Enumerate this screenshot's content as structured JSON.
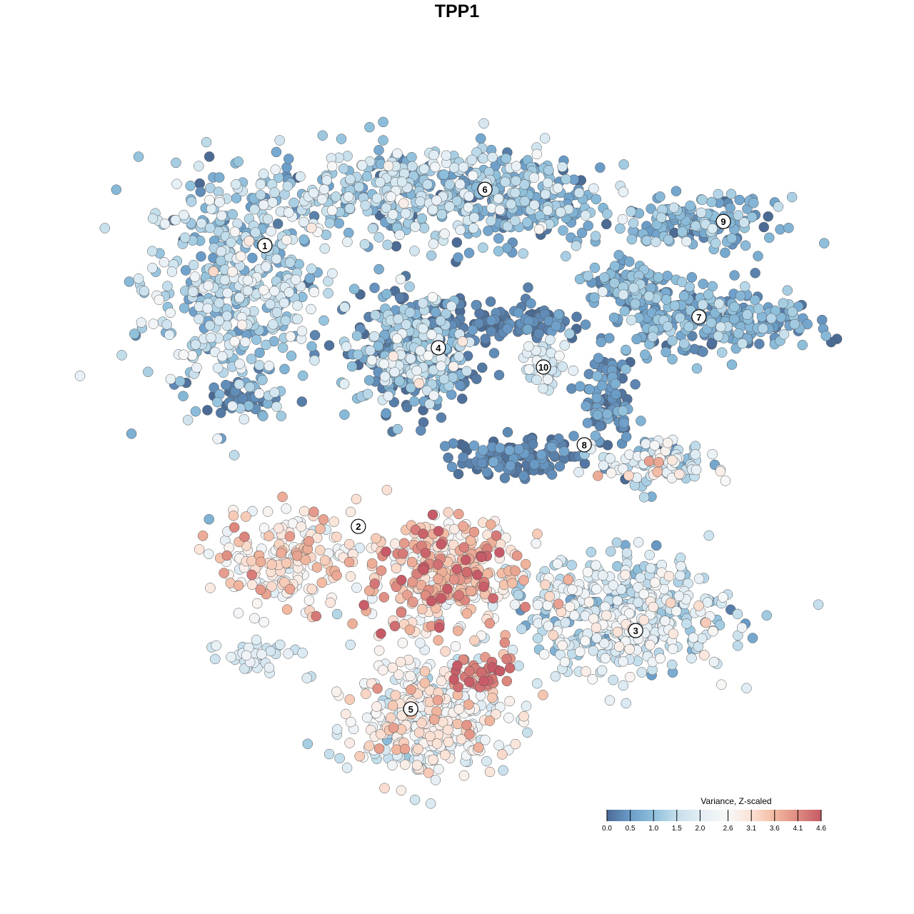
{
  "chart_data": {
    "type": "scatter",
    "title": "TPP1",
    "xlabel": "",
    "ylabel": "",
    "xlim": [
      -10,
      11
    ],
    "ylim": [
      -10,
      10
    ],
    "grid": false,
    "legend": {
      "title": "Variance, Z-scaled",
      "placement": "bottom-right",
      "ticks": [
        "0.0",
        "0.5",
        "1.0",
        "1.5",
        "2.0",
        "2.6",
        "3.1",
        "3.6",
        "4.1",
        "4.6"
      ],
      "tick_values": [
        0.0,
        0.5,
        1.0,
        1.5,
        2.0,
        2.6,
        3.1,
        3.6,
        4.1,
        4.6
      ],
      "colors": [
        "#4b6b95",
        "#6b9dc9",
        "#8ebfdb",
        "#c5dfec",
        "#e3eef5",
        "#f7f7f7",
        "#fbe2d6",
        "#f2b9a0",
        "#de8a80",
        "#c65a66"
      ]
    },
    "clusters": [
      {
        "label": "1",
        "center": [
          -5.98,
          6.58
        ]
      },
      {
        "label": "2",
        "center": [
          -3.07,
          -2.16
        ]
      },
      {
        "label": "3",
        "center": [
          5.56,
          -5.4
        ]
      },
      {
        "label": "4",
        "center": [
          -0.58,
          3.4
        ]
      },
      {
        "label": "5",
        "center": [
          -1.44,
          -7.84
        ]
      },
      {
        "label": "6",
        "center": [
          0.87,
          8.33
        ]
      },
      {
        "label": "7",
        "center": [
          7.53,
          4.36
        ]
      },
      {
        "label": "8",
        "center": [
          3.96,
          0.38
        ]
      },
      {
        "label": "9",
        "center": [
          8.29,
          7.33
        ]
      },
      {
        "label": "10",
        "center": [
          2.69,
          2.8
        ]
      }
    ],
    "point_groups": [
      {
        "cluster": "1",
        "center": [
          -6.9,
          5.3
        ],
        "sd": [
          1.9,
          2.4
        ],
        "n": 480,
        "mean_value": 1.3,
        "sd_value": 0.6
      },
      {
        "cluster": "1",
        "center": [
          -6.7,
          1.8
        ],
        "sd": [
          0.6,
          0.3
        ],
        "n": 40,
        "mean_value": 0.1,
        "sd_value": 0.15
      },
      {
        "cluster": "6",
        "center": [
          -1.3,
          8.2
        ],
        "sd": [
          3.3,
          1.0
        ],
        "n": 430,
        "mean_value": 1.2,
        "sd_value": 0.6
      },
      {
        "cluster": "6",
        "center": [
          2.2,
          7.8
        ],
        "sd": [
          1.5,
          0.8
        ],
        "n": 150,
        "mean_value": 0.6,
        "sd_value": 0.4
      },
      {
        "cluster": "4",
        "center": [
          -1.3,
          3.3
        ],
        "sd": [
          1.2,
          1.2
        ],
        "n": 280,
        "mean_value": 1.1,
        "sd_value": 0.7
      },
      {
        "cluster": "4",
        "center": [
          -1.3,
          3.1
        ],
        "sd": [
          1.4,
          1.2
        ],
        "n": 110,
        "mean_value": 0.2,
        "sd_value": 0.2
      },
      {
        "cluster": "4",
        "center": [
          1.8,
          4.2
        ],
        "sd": [
          1.5,
          0.4
        ],
        "n": 90,
        "mean_value": 0.2,
        "sd_value": 0.2
      },
      {
        "cluster": "10",
        "center": [
          2.8,
          2.9
        ],
        "sd": [
          0.5,
          0.5
        ],
        "n": 40,
        "mean_value": 1.8,
        "sd_value": 0.3
      },
      {
        "cluster": "7",
        "center": [
          8.0,
          4.3
        ],
        "sd": [
          2.1,
          0.7
        ],
        "n": 250,
        "mean_value": 0.7,
        "sd_value": 0.4
      },
      {
        "cluster": "7",
        "center": [
          5.3,
          5.3
        ],
        "sd": [
          1.0,
          0.5
        ],
        "n": 80,
        "mean_value": 0.8,
        "sd_value": 0.4
      },
      {
        "cluster": "9",
        "center": [
          7.6,
          7.3
        ],
        "sd": [
          1.6,
          0.5
        ],
        "n": 150,
        "mean_value": 0.8,
        "sd_value": 0.4
      },
      {
        "cluster": "8",
        "center": [
          4.7,
          1.8
        ],
        "sd": [
          0.5,
          1.2
        ],
        "n": 100,
        "mean_value": 0.3,
        "sd_value": 0.3
      },
      {
        "cluster": "8",
        "center": [
          6.2,
          -0.2
        ],
        "sd": [
          1.2,
          0.5
        ],
        "n": 120,
        "mean_value": 1.7,
        "sd_value": 0.8
      },
      {
        "cluster": "8",
        "center": [
          1.8,
          0.0
        ],
        "sd": [
          1.2,
          0.4
        ],
        "n": 120,
        "mean_value": 0.2,
        "sd_value": 0.2
      },
      {
        "cluster": "2",
        "center": [
          -5.3,
          -3.1
        ],
        "sd": [
          1.5,
          1.0
        ],
        "n": 200,
        "mean_value": 2.9,
        "sd_value": 0.6
      },
      {
        "cluster": "2",
        "center": [
          -0.4,
          -3.6
        ],
        "sd": [
          1.6,
          1.2
        ],
        "n": 350,
        "mean_value": 3.3,
        "sd_value": 0.7
      },
      {
        "cluster": "3",
        "center": [
          5.1,
          -4.9
        ],
        "sd": [
          2.3,
          1.2
        ],
        "n": 450,
        "mean_value": 1.7,
        "sd_value": 0.6
      },
      {
        "cluster": "5",
        "center": [
          -0.9,
          -8.0
        ],
        "sd": [
          1.6,
          1.3
        ],
        "n": 400,
        "mean_value": 2.4,
        "sd_value": 0.6
      },
      {
        "cluster": "5",
        "center": [
          0.6,
          -6.8
        ],
        "sd": [
          0.8,
          0.5
        ],
        "n": 40,
        "mean_value": 4.3,
        "sd_value": 0.3
      },
      {
        "cluster": "2",
        "center": [
          -6.4,
          -6.2
        ],
        "sd": [
          0.9,
          0.3
        ],
        "n": 40,
        "mean_value": 1.8,
        "sd_value": 0.3
      }
    ]
  }
}
